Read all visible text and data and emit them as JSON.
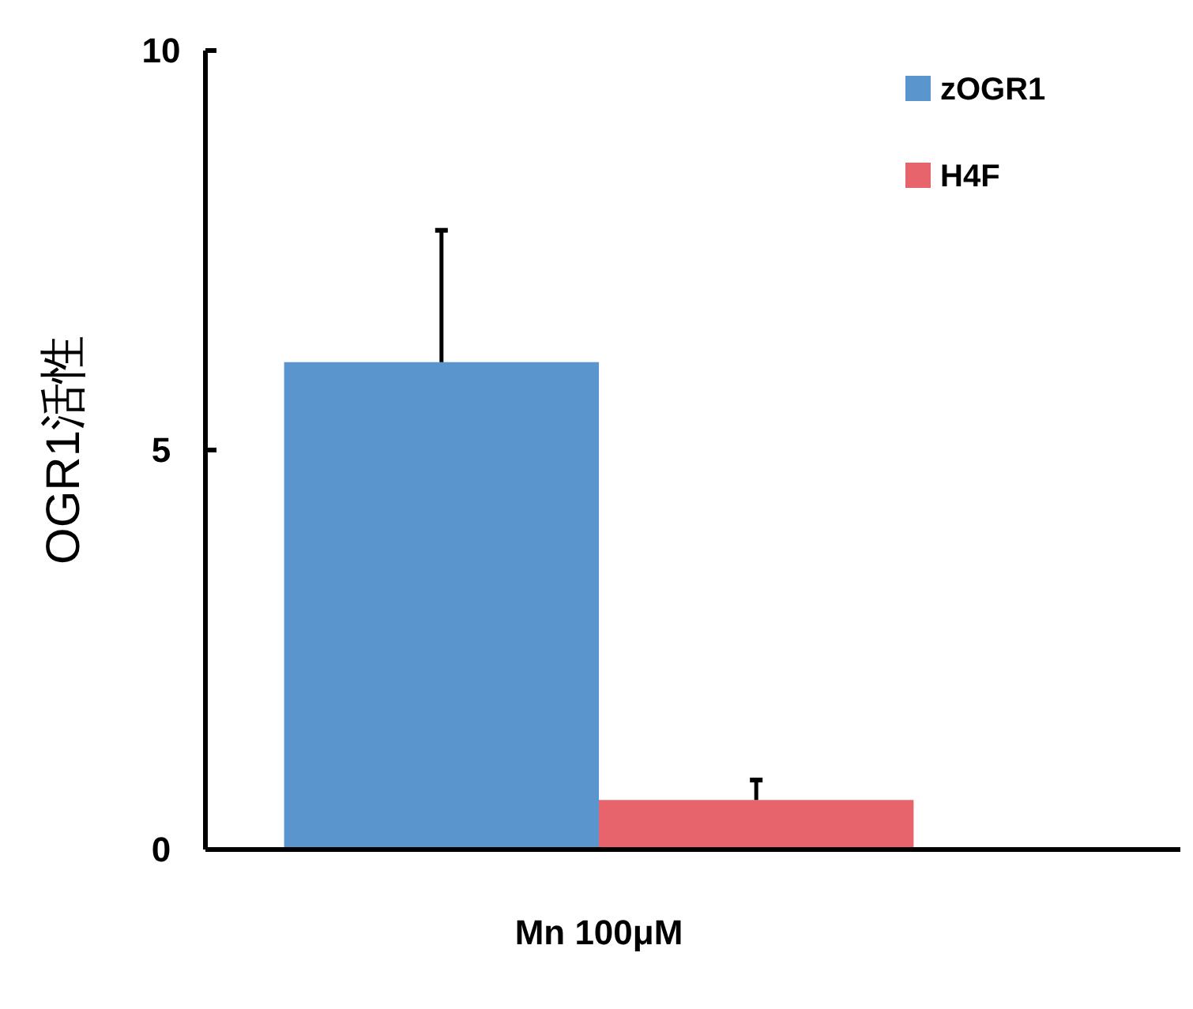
{
  "chart_data": {
    "type": "bar",
    "categories": [
      "Mn 100μM"
    ],
    "series": [
      {
        "name": "zOGR1",
        "color": "#5a96cd",
        "values": [
          6.1
        ],
        "errors": [
          [
            6.1,
            7.75
          ]
        ]
      },
      {
        "name": "H4F",
        "color": "#e8646c",
        "values": [
          0.62
        ],
        "errors": [
          [
            0.62,
            0.87
          ]
        ]
      }
    ],
    "ylabel": "OGR1活性",
    "ylim": [
      0,
      10
    ],
    "yticks": [
      0,
      5,
      10
    ],
    "legend": "top right",
    "grid": false
  }
}
